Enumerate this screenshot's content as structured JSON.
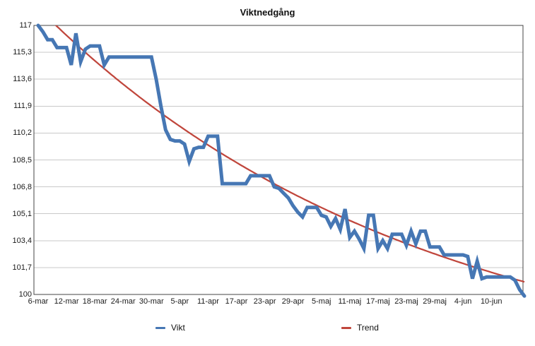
{
  "chart_data": {
    "type": "line",
    "title": "Viktnedgång",
    "grid": "horizontal",
    "legend_position": "bottom",
    "x_axis": {
      "unit": "day",
      "daily_points_from": "6-mar",
      "daily_points_to": "17-jun",
      "tick_labels": [
        "6-mar",
        "12-mar",
        "18-mar",
        "24-mar",
        "30-mar",
        "5-apr",
        "11-apr",
        "17-apr",
        "23-apr",
        "29-apr",
        "5-maj",
        "11-maj",
        "17-maj",
        "23-maj",
        "29-maj",
        "4-jun",
        "10-jun"
      ],
      "tick_day_indices": [
        0,
        6,
        12,
        18,
        24,
        30,
        36,
        42,
        48,
        54,
        60,
        66,
        72,
        78,
        84,
        90,
        96
      ],
      "total_days": 104
    },
    "y_axis": {
      "min": 100,
      "max": 117,
      "tick_step": 1.7,
      "ticks": [
        117,
        115.3,
        113.6,
        111.9,
        110.2,
        108.5,
        106.8,
        105.1,
        103.4,
        101.7,
        100
      ],
      "tick_labels": [
        "117",
        "115,3",
        "113,6",
        "111,9",
        "110,2",
        "108,5",
        "106,8",
        "105,1",
        "103,4",
        "101,7",
        "100"
      ]
    },
    "series": [
      {
        "name": "Vikt",
        "color": "#4677b4",
        "stroke_width": 5,
        "values": [
          117,
          116.6,
          116.1,
          116.1,
          115.6,
          115.6,
          115.6,
          114.5,
          116.5,
          114.7,
          115.5,
          115.7,
          115.7,
          115.7,
          114.5,
          115,
          115,
          115,
          115,
          115,
          115,
          115,
          115,
          115,
          115,
          113.6,
          111.9,
          110.4,
          109.8,
          109.7,
          109.7,
          109.5,
          108.4,
          109.2,
          109.3,
          109.3,
          110,
          110,
          110,
          107,
          107,
          107,
          107,
          107,
          107,
          107.5,
          107.5,
          107.5,
          107.5,
          107.5,
          106.8,
          106.7,
          106.4,
          106.1,
          105.6,
          105.2,
          104.9,
          105.5,
          105.5,
          105.5,
          105,
          104.9,
          104.3,
          104.8,
          104.1,
          105.4,
          103.6,
          104,
          103.5,
          102.9,
          105,
          105,
          102.9,
          103.4,
          102.9,
          103.8,
          103.8,
          103.8,
          103.1,
          104,
          103.2,
          104,
          104,
          103,
          103,
          103,
          102.5,
          102.5,
          102.5,
          102.5,
          102.5,
          102.4,
          101,
          102.1,
          101,
          101.1,
          101.1,
          101.1,
          101.1,
          101.1,
          101.1,
          100.9,
          100.3,
          99.9
        ]
      },
      {
        "name": "Trend",
        "color": "#c0463c",
        "stroke_width": 2.25,
        "fit": {
          "type": "exponential_decay",
          "formula": "weight(t) = 94.2 + 23.9 * exp(-t/80)",
          "base": 94.2,
          "amplitude": 23.9,
          "tau": 80,
          "sample_days": [
            0,
            6,
            12,
            18,
            24,
            30,
            36,
            42,
            48,
            54,
            60,
            66,
            72,
            78,
            84,
            90,
            96,
            103
          ],
          "sample_values": [
            118.1,
            116.4,
            114.8,
            113.3,
            111.9,
            110.6,
            109.4,
            108.3,
            107.3,
            106.4,
            105.5,
            104.7,
            103.9,
            103.2,
            102.6,
            102.0,
            101.4,
            100.8
          ]
        }
      }
    ]
  },
  "legend": {
    "items": [
      {
        "label": "Vikt",
        "color": "#4677b4"
      },
      {
        "label": "Trend",
        "color": "#c0463c"
      }
    ]
  },
  "colors": {
    "gridline": "#c9c9c9",
    "plot_border": "#444444",
    "background": "#ffffff",
    "text": "#1a1a1a"
  }
}
